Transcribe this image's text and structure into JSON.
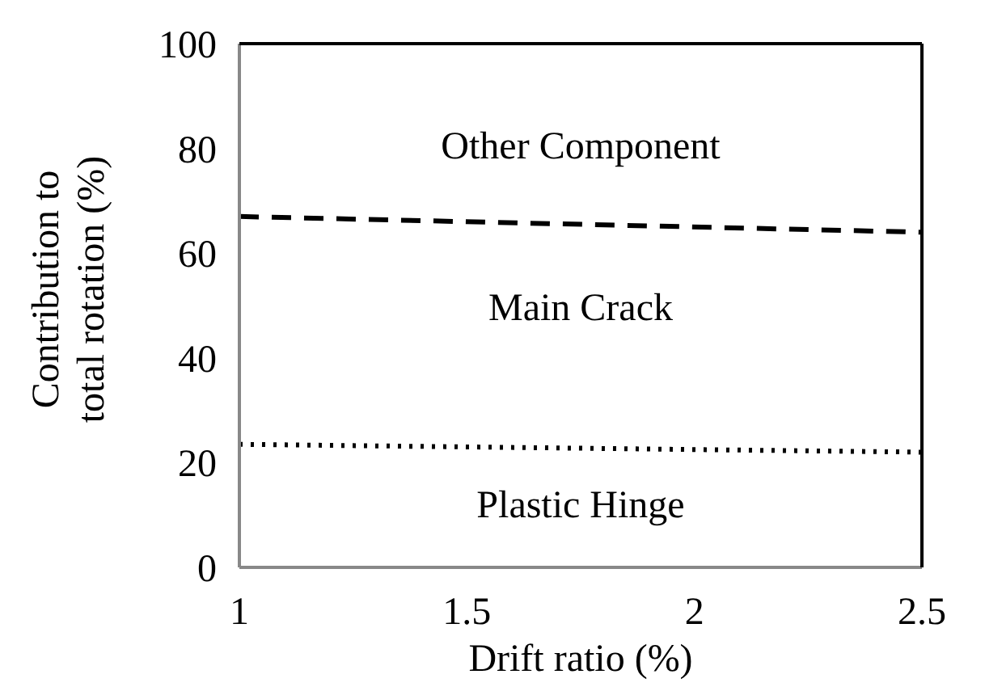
{
  "chart_data": {
    "type": "line",
    "xlabel": "Drift ratio (%)",
    "ylabel": "Contribution to total rotation (%)",
    "x": [
      1,
      2.5
    ],
    "series": [
      {
        "color": "#000000",
        "values": [
          67,
          64
        ],
        "line_style": "dashed"
      },
      {
        "color": "#000000",
        "values": [
          23.5,
          22
        ],
        "line_style": "dotted"
      }
    ],
    "xlim": [
      1,
      2.5
    ],
    "xticks": [
      1,
      1.5,
      2,
      2.5
    ],
    "ylim": [
      0,
      100
    ],
    "yticks": [
      0,
      20,
      40,
      60,
      80,
      100
    ],
    "marker": "none",
    "annotations": [
      "Other Component",
      "Main Crack",
      "Plastic Hinge"
    ]
  }
}
